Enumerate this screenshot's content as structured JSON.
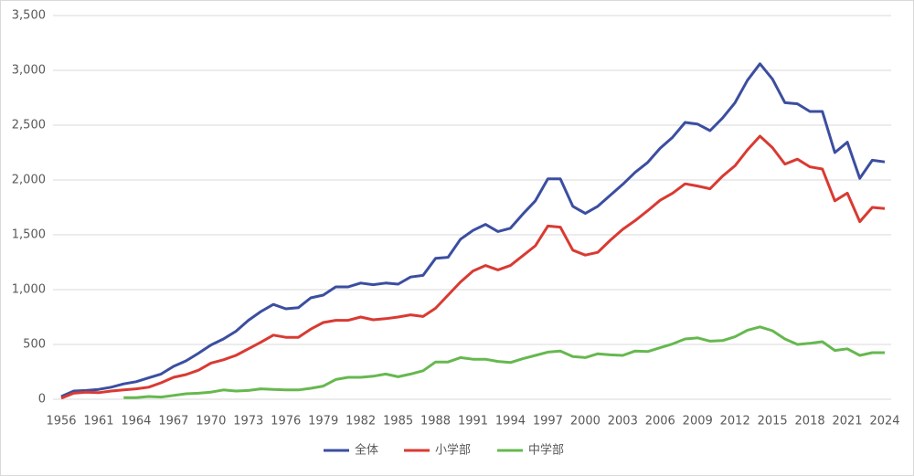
{
  "chart_data": {
    "type": "line",
    "categories": [
      "1956",
      null,
      null,
      "1961",
      null,
      null,
      "1964",
      null,
      null,
      "1967",
      null,
      null,
      "1970",
      null,
      null,
      "1973",
      null,
      null,
      "1976",
      null,
      null,
      "1979",
      null,
      null,
      "1982",
      null,
      null,
      "1985",
      null,
      null,
      "1988",
      null,
      null,
      "1991",
      null,
      null,
      "1994",
      null,
      null,
      "1997",
      null,
      null,
      "2000",
      null,
      null,
      "2003",
      null,
      null,
      "2006",
      null,
      null,
      "2009",
      null,
      null,
      "2012",
      null,
      null,
      "2015",
      null,
      null,
      "2018",
      null,
      null,
      "2021",
      null,
      null,
      "2024"
    ],
    "series": [
      {
        "name": "全体",
        "color": "#3b4ea0",
        "values": [
          25,
          75,
          80,
          90,
          110,
          140,
          160,
          195,
          230,
          300,
          350,
          420,
          495,
          550,
          620,
          720,
          800,
          865,
          825,
          835,
          925,
          950,
          1025,
          1025,
          1060,
          1045,
          1060,
          1050,
          1115,
          1130,
          1285,
          1295,
          1460,
          1540,
          1595,
          1530,
          1560,
          1690,
          1810,
          2010,
          2010,
          1760,
          1695,
          1760,
          1860,
          1960,
          2070,
          2160,
          2290,
          2390,
          2525,
          2510,
          2450,
          2565,
          2705,
          2910,
          3060,
          2920,
          2705,
          2695,
          2625,
          2625,
          2250,
          2345,
          2015,
          2180,
          2165
        ]
      },
      {
        "name": "小学部",
        "color": "#d93a32",
        "values": [
          10,
          55,
          65,
          60,
          75,
          85,
          95,
          110,
          150,
          200,
          225,
          265,
          330,
          360,
          400,
          460,
          520,
          585,
          565,
          565,
          640,
          700,
          720,
          720,
          750,
          725,
          735,
          750,
          770,
          755,
          830,
          950,
          1070,
          1170,
          1220,
          1180,
          1220,
          1310,
          1400,
          1580,
          1570,
          1360,
          1315,
          1340,
          1450,
          1550,
          1630,
          1720,
          1815,
          1880,
          1965,
          1945,
          1920,
          2035,
          2130,
          2275,
          2400,
          2295,
          2145,
          2190,
          2120,
          2100,
          1810,
          1880,
          1620,
          1750,
          1740
        ]
      },
      {
        "name": "中学部",
        "color": "#66b84f",
        "values": [
          null,
          null,
          null,
          null,
          null,
          15,
          15,
          25,
          20,
          35,
          50,
          55,
          65,
          85,
          75,
          80,
          95,
          90,
          85,
          85,
          100,
          120,
          180,
          200,
          200,
          210,
          230,
          205,
          230,
          260,
          340,
          340,
          380,
          365,
          365,
          345,
          335,
          370,
          400,
          430,
          440,
          390,
          380,
          415,
          405,
          400,
          440,
          435,
          470,
          505,
          550,
          560,
          530,
          535,
          570,
          630,
          660,
          625,
          550,
          500,
          510,
          525,
          445,
          460,
          400,
          425,
          425
        ]
      }
    ],
    "ylim": [
      0,
      3500
    ],
    "yticks": [
      0,
      500,
      {
        "value": 1000,
        "label": "1,000"
      },
      {
        "value": 1500,
        "label": "1,500"
      },
      {
        "value": 2000,
        "label": "2,000"
      },
      {
        "value": 2500,
        "label": "2,500"
      },
      {
        "value": 3000,
        "label": "3,000"
      },
      {
        "value": 3500,
        "label": "3,500"
      }
    ],
    "grid": true,
    "legend": "bottom"
  }
}
